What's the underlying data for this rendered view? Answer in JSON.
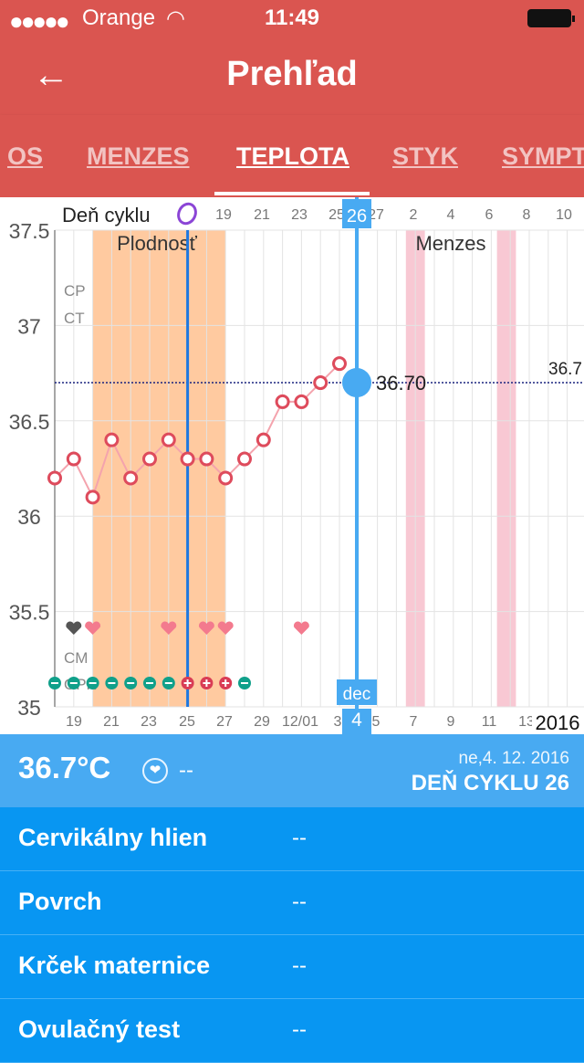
{
  "status": {
    "carrier": "Orange",
    "time": "11:49"
  },
  "header": {
    "title": "Prehľad"
  },
  "tabs": [
    {
      "label": "OS",
      "active": false
    },
    {
      "label": "MENZES",
      "active": false
    },
    {
      "label": "TEPLOTA",
      "active": true
    },
    {
      "label": "STYK",
      "active": false
    },
    {
      "label": "SYMPT",
      "active": false
    }
  ],
  "chart_data": {
    "type": "line",
    "top_axis_label": "Deň cyklu",
    "top_ticks": [
      "19",
      "21",
      "23",
      "25",
      "26",
      "27",
      "2",
      "4",
      "6",
      "8",
      "10"
    ],
    "bottom_ticks": [
      "19",
      "21",
      "23",
      "25",
      "27",
      "29",
      "12/01",
      "3",
      "4",
      "5",
      "7",
      "9",
      "11",
      "13"
    ],
    "year": "2016",
    "ylim": [
      35,
      37.5
    ],
    "yticks": [
      "37.5",
      "37",
      "36.5",
      "36",
      "35.5",
      "35"
    ],
    "row_labels": [
      "CP",
      "CT",
      "CM",
      "OPK"
    ],
    "regions": [
      "Plodnosť",
      "Menzes"
    ],
    "x": [
      17,
      18,
      19,
      20,
      21,
      22,
      23,
      24,
      25,
      26,
      27,
      28,
      29,
      30,
      1,
      2,
      3
    ],
    "y": [
      36.2,
      36.3,
      36.1,
      36.4,
      36.2,
      36.3,
      36.4,
      36.3,
      36.3,
      36.2,
      36.3,
      36.4,
      36.6,
      36.6,
      36.7,
      36.8,
      36.7
    ],
    "coverline": "36.7",
    "selected": {
      "value": "36.70",
      "day": "26",
      "month": "dec",
      "date": "4"
    },
    "opk": [
      "neg",
      "neg",
      "neg",
      "neg",
      "neg",
      "neg",
      "neg",
      "pos",
      "pos",
      "pos",
      "neg"
    ],
    "hearts": [
      "gray",
      "pink",
      "pink",
      "pink",
      "pink",
      "pink"
    ],
    "colors": {
      "line": "#f4a3ad",
      "marker": "#de4b5c",
      "fertile": "#ffcaa0",
      "menses": "#f5b6c4",
      "selected": "#48aaf2",
      "ovulation": "#1e77e0"
    }
  },
  "info": {
    "temp": "36.7°C",
    "note": "--",
    "date": "ne,4. 12. 2016",
    "cycle_day": "DEŇ CYKLU 26"
  },
  "rows": [
    {
      "label": "Cervikálny hlien",
      "value": "--"
    },
    {
      "label": "Povrch",
      "value": "--"
    },
    {
      "label": "Krček maternice",
      "value": "--"
    },
    {
      "label": "Ovulačný test",
      "value": "--"
    }
  ]
}
